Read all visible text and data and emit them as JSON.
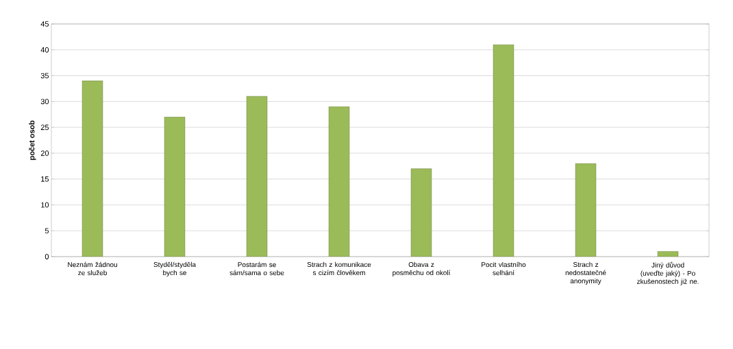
{
  "chart_data": {
    "type": "bar",
    "ylabel": "počet osob",
    "categories": [
      "Neznám žádnou ze služeb",
      "Styděl/styděla bych se",
      "Postarám se sám/sama o sebe",
      "Strach z komunikace s cizím člověkem",
      "Obava z posměchu od okolí",
      "Pocit vlastního selhání",
      "Strach z nedostatečné anonymity",
      "Jiný důvod (uveďte jaký) - Po zkušenostech již ne."
    ],
    "values": [
      34,
      27,
      31,
      29,
      17,
      41,
      18,
      1
    ],
    "color": "#9bbb59",
    "ylim": [
      0,
      45
    ],
    "yticks": [
      0,
      5,
      10,
      15,
      20,
      25,
      30,
      35,
      40,
      45
    ],
    "grid": "y"
  }
}
